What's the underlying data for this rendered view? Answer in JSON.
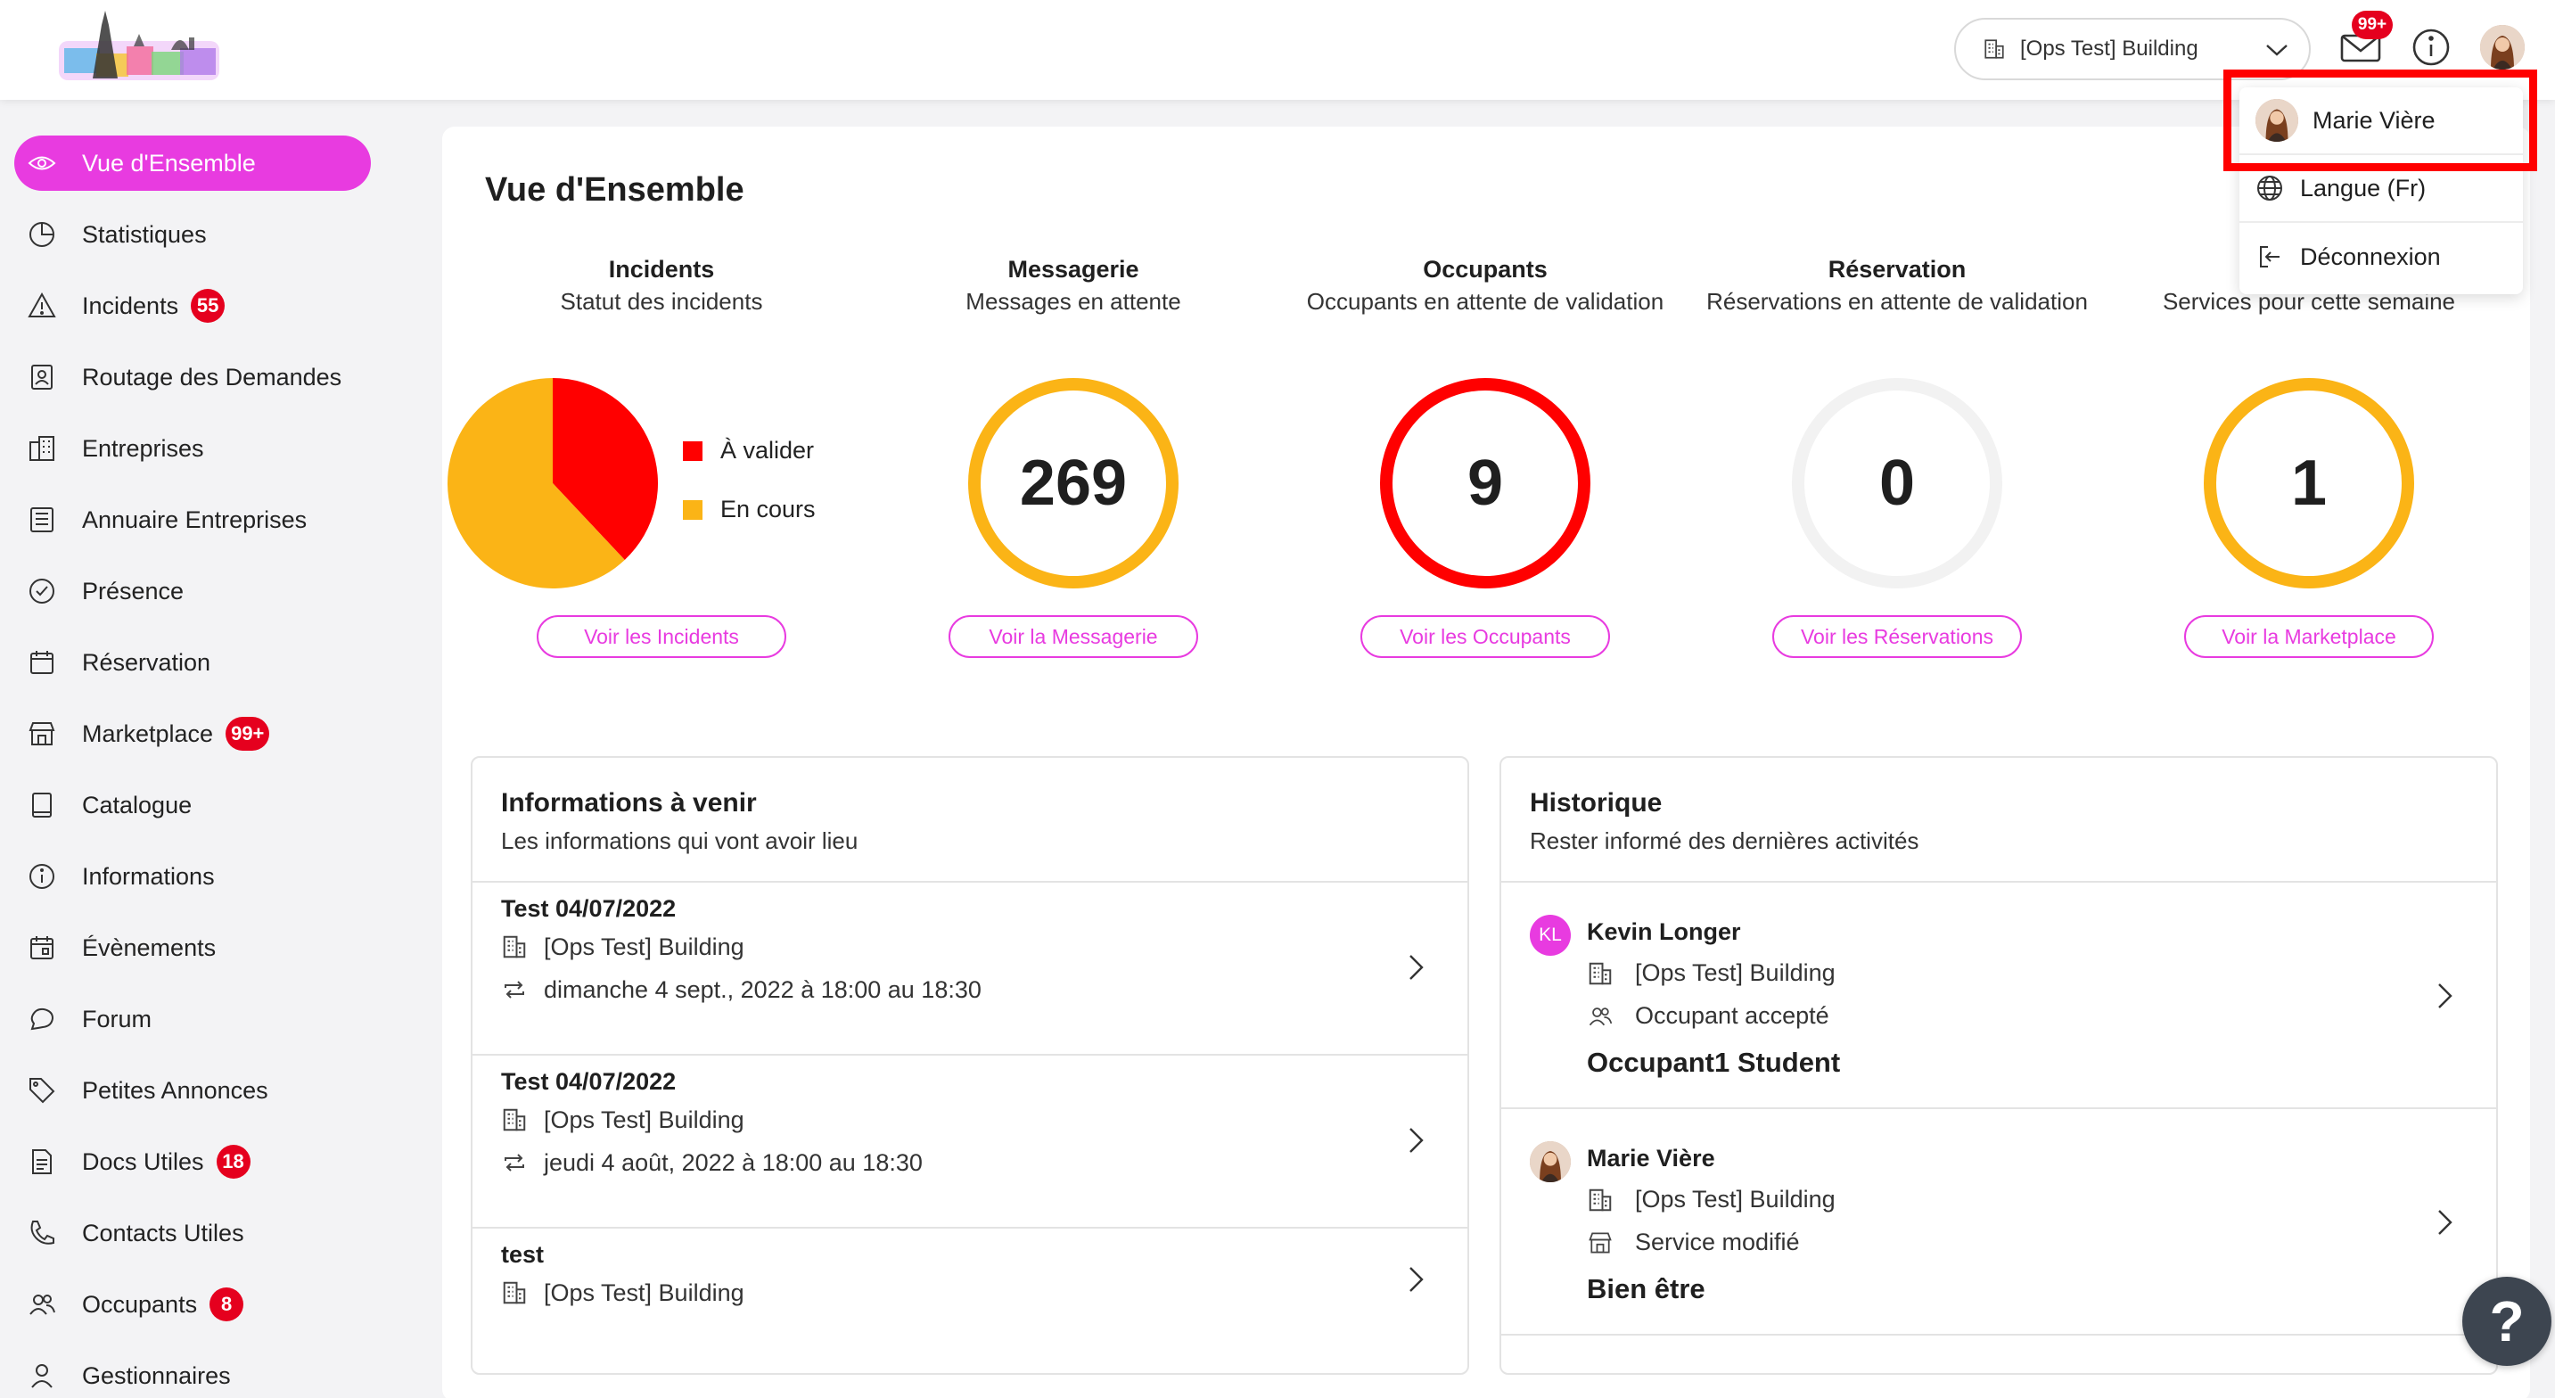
{
  "header": {
    "building_selector": "[Ops Test] Building",
    "mail_badge": "99+"
  },
  "user_menu": {
    "user_name": "Marie Vière",
    "language": "Langue (Fr)",
    "logout": "Déconnexion"
  },
  "sidebar": {
    "items": [
      {
        "label": "Vue d'Ensemble",
        "icon": "eye-icon",
        "badge": ""
      },
      {
        "label": "Statistiques",
        "icon": "pie-chart-icon",
        "badge": ""
      },
      {
        "label": "Incidents",
        "icon": "warning-icon",
        "badge": "55"
      },
      {
        "label": "Routage des Demandes",
        "icon": "contact-card-icon",
        "badge": ""
      },
      {
        "label": "Entreprises",
        "icon": "buildings-icon",
        "badge": ""
      },
      {
        "label": "Annuaire Entreprises",
        "icon": "directory-icon",
        "badge": ""
      },
      {
        "label": "Présence",
        "icon": "check-circle-icon",
        "badge": ""
      },
      {
        "label": "Réservation",
        "icon": "calendar-icon",
        "badge": ""
      },
      {
        "label": "Marketplace",
        "icon": "store-icon",
        "badge": "99+"
      },
      {
        "label": "Catalogue",
        "icon": "book-icon",
        "badge": ""
      },
      {
        "label": "Informations",
        "icon": "info-icon",
        "badge": ""
      },
      {
        "label": "Évènements",
        "icon": "event-calendar-icon",
        "badge": ""
      },
      {
        "label": "Forum",
        "icon": "chat-bubble-icon",
        "badge": ""
      },
      {
        "label": "Petites Annonces",
        "icon": "tag-icon",
        "badge": ""
      },
      {
        "label": "Docs Utiles",
        "icon": "document-icon",
        "badge": "18"
      },
      {
        "label": "Contacts Utiles",
        "icon": "phone-icon",
        "badge": ""
      },
      {
        "label": "Occupants",
        "icon": "users-icon",
        "badge": "8"
      },
      {
        "label": "Gestionnaires",
        "icon": "user-icon",
        "badge": ""
      }
    ]
  },
  "main": {
    "title": "Vue d'Ensemble",
    "stats": [
      {
        "title": "Incidents",
        "subtitle": "Statut des incidents",
        "button": "Voir les Incidents"
      },
      {
        "title": "Messagerie",
        "subtitle": "Messages en attente",
        "value": "269",
        "color": "#fbb416",
        "button": "Voir la Messagerie"
      },
      {
        "title": "Occupants",
        "subtitle": "Occupants en attente de validation",
        "value": "9",
        "color": "#ff0000",
        "button": "Voir les Occupants"
      },
      {
        "title": "Réservation",
        "subtitle": "Réservations en attente de validation",
        "value": "0",
        "color": "#f2f2f2",
        "button": "Voir les Réservations"
      },
      {
        "title": "",
        "subtitle": "Services pour cette semaine",
        "value": "1",
        "color": "#fbb416",
        "button": "Voir la Marketplace"
      }
    ],
    "legend": {
      "a_valider": "À valider",
      "en_cours": "En cours"
    }
  },
  "chart_data": {
    "type": "pie",
    "title": "Statut des incidents",
    "slices": [
      {
        "name": "À valider",
        "value": 38,
        "color": "#ff0000"
      },
      {
        "name": "En cours",
        "value": 62,
        "color": "#fbb416"
      }
    ],
    "legend": "right"
  },
  "infos": {
    "title": "Informations à venir",
    "subtitle": "Les informations qui vont avoir lieu",
    "rows": [
      {
        "title": "Test 04/07/2022",
        "building": "[Ops Test] Building",
        "date": "dimanche 4 sept., 2022 à 18:00 au 18:30"
      },
      {
        "title": "Test 04/07/2022",
        "building": "[Ops Test] Building",
        "date": "jeudi 4 août, 2022 à 18:00 au 18:30"
      },
      {
        "title": "test",
        "building": "[Ops Test] Building",
        "date": ""
      }
    ]
  },
  "history": {
    "title": "Historique",
    "subtitle": "Rester informé des dernières activités",
    "rows": [
      {
        "initials": "KL",
        "name": "Kevin Longer",
        "building": "[Ops Test] Building",
        "action": "Occupant accepté",
        "target": "Occupant1 Student"
      },
      {
        "initials": "",
        "name": "Marie Vière",
        "building": "[Ops Test] Building",
        "action": "Service modifié",
        "target": "Bien être"
      }
    ]
  },
  "help": {
    "label": "?"
  }
}
